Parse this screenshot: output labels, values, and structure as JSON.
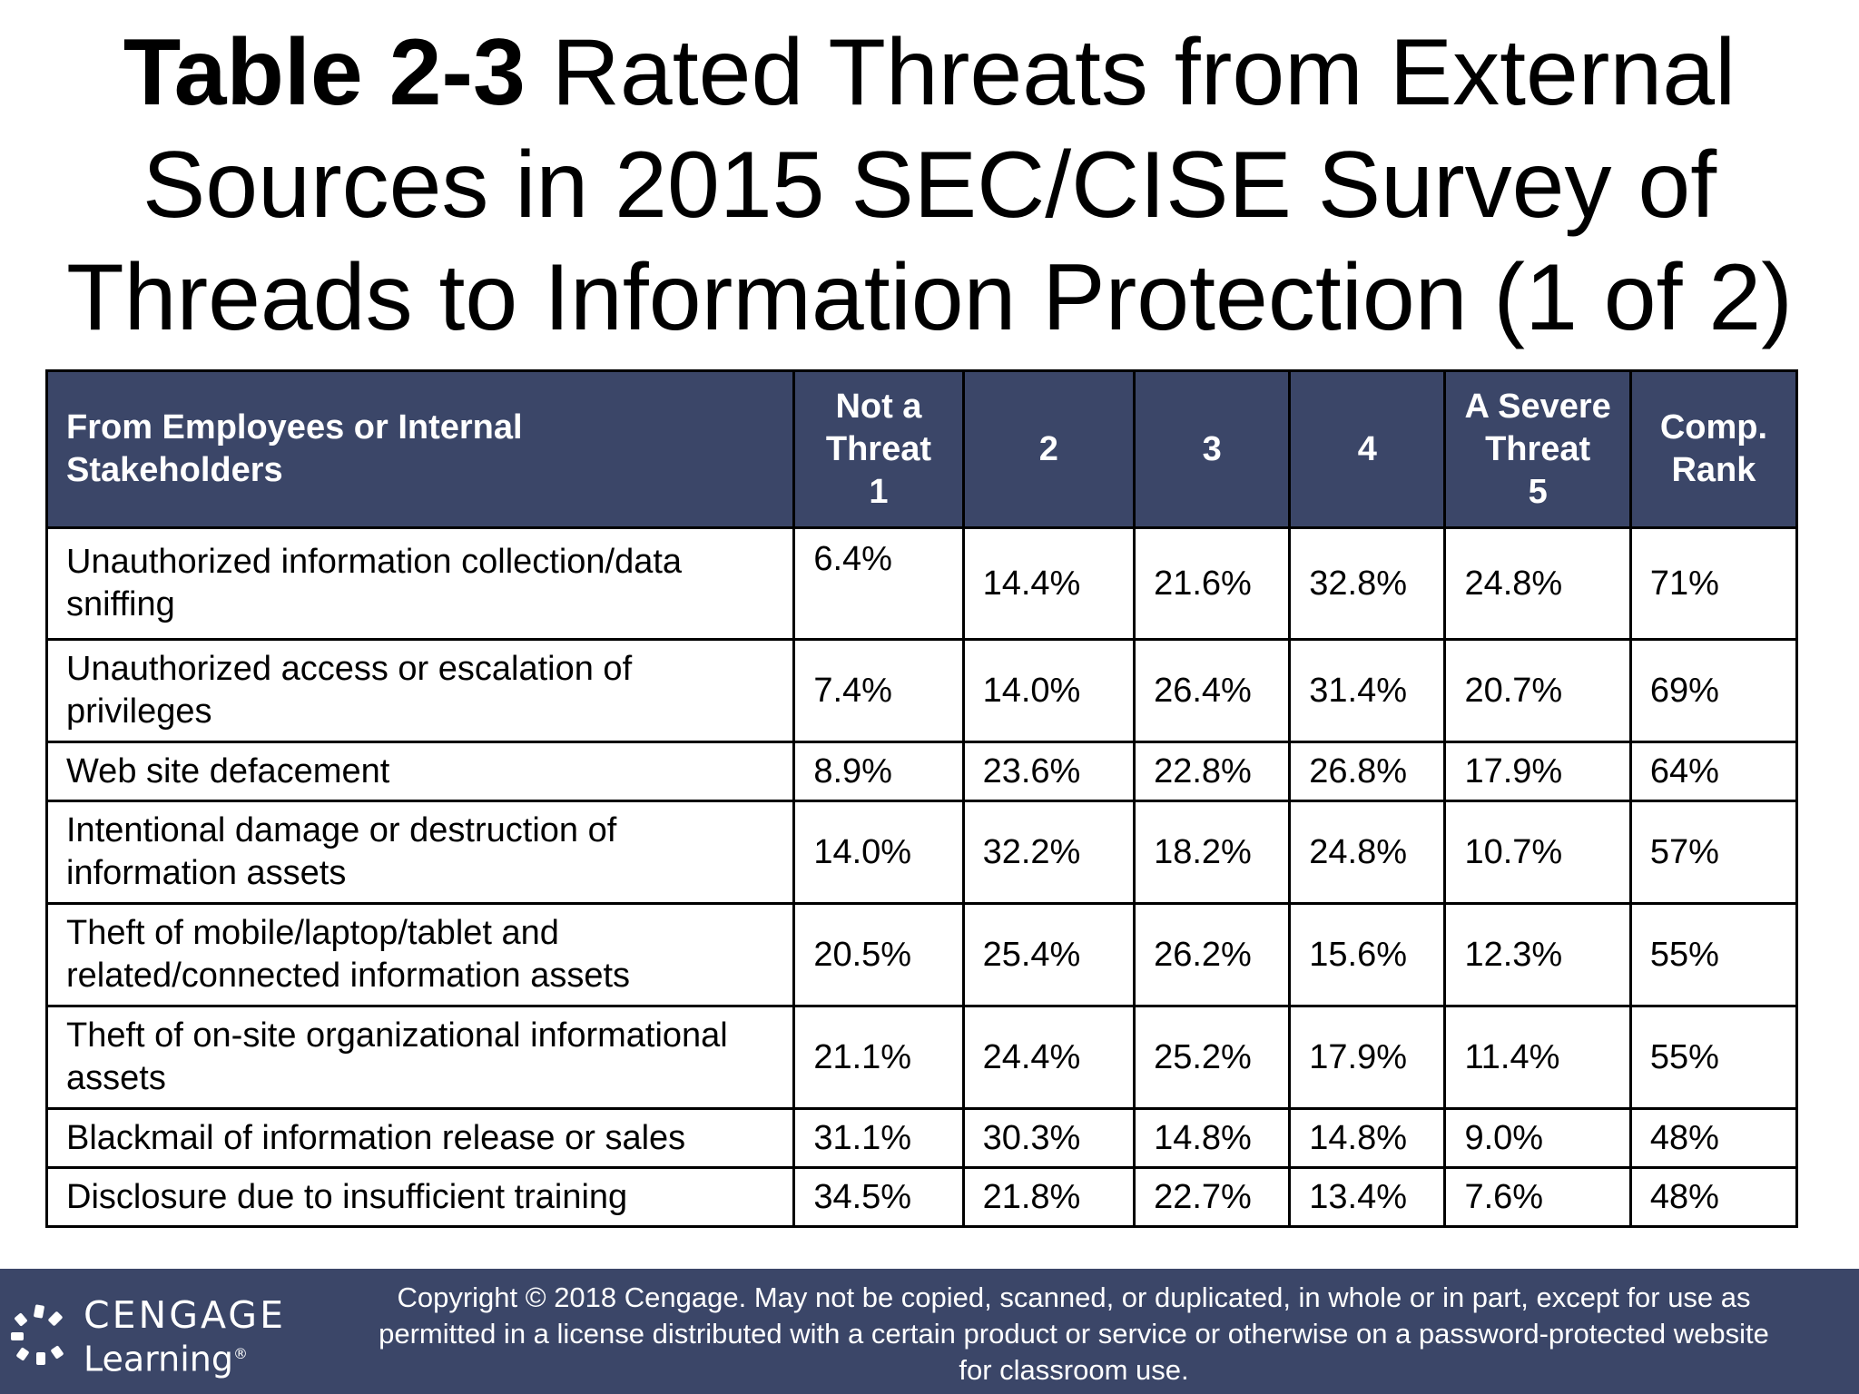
{
  "title": {
    "bold_part": "Table 2-3",
    "line1_rest": " Rated Threats from External",
    "line2": "Sources in 2015 SEC/CISE Survey of",
    "line3": "Threads to Information Protection (1 of 2)"
  },
  "table": {
    "headers": [
      [
        "From Employees or Internal",
        "Stakeholders"
      ],
      [
        "Not a",
        "Threat",
        "1"
      ],
      [
        "2"
      ],
      [
        "3"
      ],
      [
        "4"
      ],
      [
        "A Severe",
        "Threat",
        "5"
      ],
      [
        "Comp.",
        "Rank"
      ]
    ],
    "rows": [
      {
        "label": "Unauthorized information collection/data sniffing",
        "values": [
          "6.4%",
          "14.4%",
          "21.6%",
          "32.8%",
          "24.8%",
          "71%"
        ]
      },
      {
        "label": "Unauthorized access or escalation of privileges",
        "values": [
          "7.4%",
          "14.0%",
          "26.4%",
          "31.4%",
          "20.7%",
          "69%"
        ]
      },
      {
        "label": "Web site defacement",
        "values": [
          "8.9%",
          "23.6%",
          "22.8%",
          "26.8%",
          "17.9%",
          "64%"
        ]
      },
      {
        "label": "Intentional damage or destruction of information assets",
        "values": [
          "14.0%",
          "32.2%",
          "18.2%",
          "24.8%",
          "10.7%",
          "57%"
        ]
      },
      {
        "label": "Theft of mobile/laptop/tablet and related/connected information assets",
        "values": [
          "20.5%",
          "25.4%",
          "26.2%",
          "15.6%",
          "12.3%",
          "55%"
        ]
      },
      {
        "label": "Theft of on-site organizational informational assets",
        "values": [
          "21.1%",
          "24.4%",
          "25.2%",
          "17.9%",
          "11.4%",
          "55%"
        ]
      },
      {
        "label": "Blackmail of information release or sales",
        "values": [
          "31.1%",
          "30.3%",
          "14.8%",
          "14.8%",
          "9.0%",
          "48%"
        ]
      },
      {
        "label": "Disclosure due to insufficient training",
        "values": [
          "34.5%",
          "21.8%",
          "22.7%",
          "13.4%",
          "7.6%",
          "48%"
        ]
      }
    ]
  },
  "footer": {
    "logo_word": "CENGAGE",
    "logo_sub": "Learning",
    "logo_mark": "®",
    "copyright_lines": [
      "Copyright © 2018 Cengage. May not be copied, scanned, or duplicated, in whole or in part, except for use as",
      "permitted in a license distributed with a certain product or service or otherwise on a password-protected website",
      "for classroom use."
    ]
  },
  "colors": {
    "header_bg": "#3b4668",
    "footer_bg": "#3b4668",
    "text": "#000000",
    "header_text": "#ffffff"
  }
}
